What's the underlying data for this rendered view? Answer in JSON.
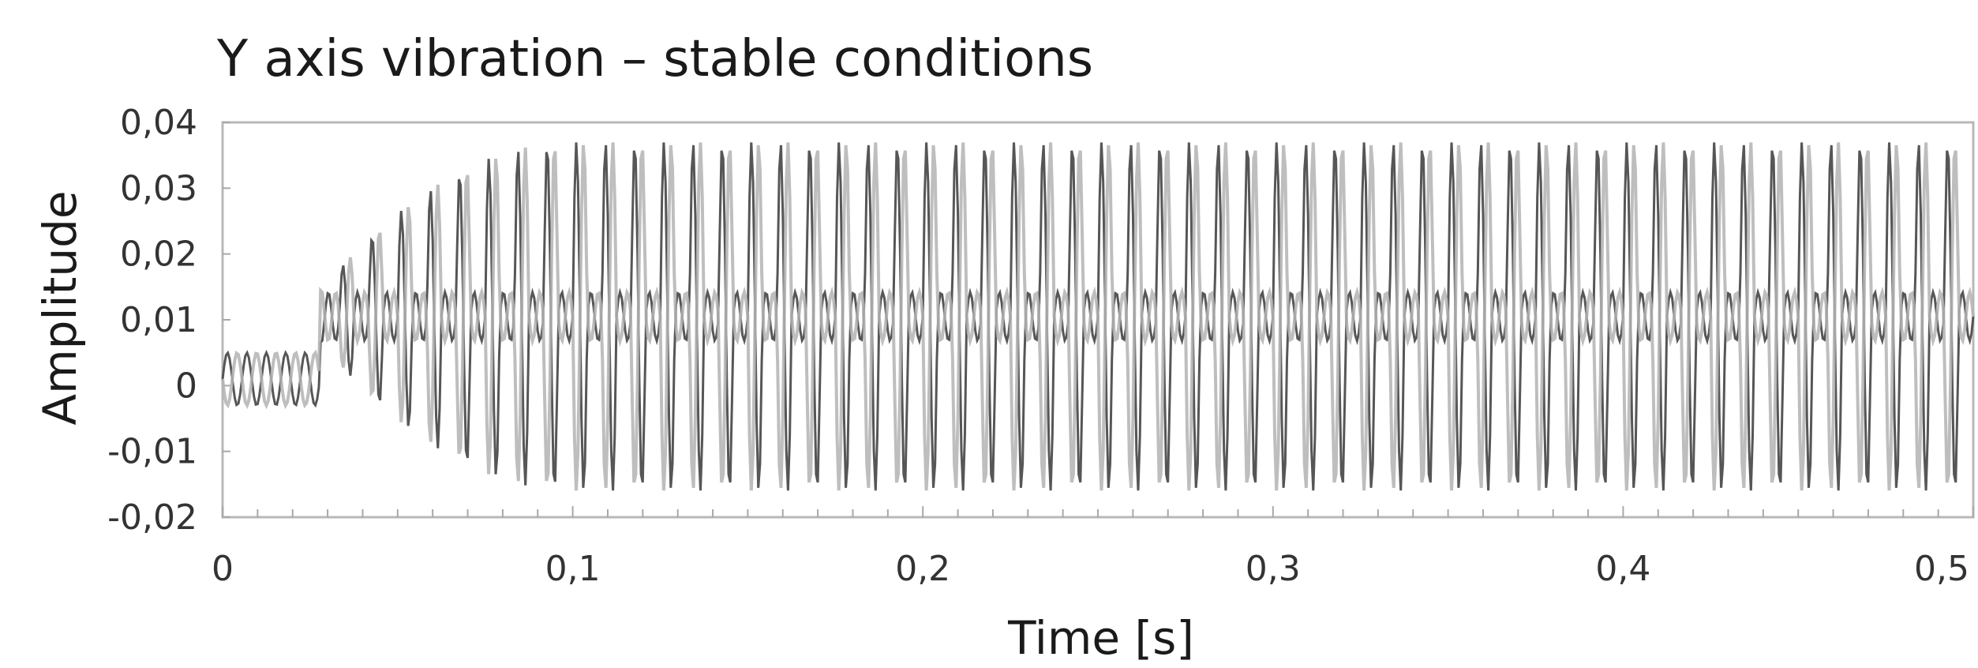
{
  "chart_data": {
    "type": "line",
    "title": "Y axis vibration – stable conditions",
    "xlabel": "Time [s]",
    "ylabel": "Amplitude",
    "xlim": [
      0,
      0.5
    ],
    "ylim": [
      -0.02,
      0.04
    ],
    "x_ticks": [
      "0",
      "0,1",
      "0,2",
      "0,3",
      "0,4",
      "0,5"
    ],
    "y_ticks": [
      "0,04",
      "0,03",
      "0,02",
      "0,01",
      "0",
      "-0,01",
      "-0,02"
    ],
    "grid": false,
    "legend": "none",
    "series": [
      {
        "color": "#4d4d4d",
        "description_values": {
          "sample_step": 0.0005,
          "steady_max": 0.035,
          "steady_min": -0.0095,
          "inner_max": 0.0145,
          "inner_min": 0.0072,
          "startup_end": 0.028,
          "settle_time": 0.1,
          "startup_amplitude_max": 0.006
        }
      },
      {
        "color": "#b3b3b3",
        "description_values": {
          "sample_step": 0.0005,
          "steady_max": 0.035,
          "steady_min": -0.0095,
          "inner_max": 0.0145,
          "inner_min": 0.0072,
          "startup_end": 0.028,
          "settle_time": 0.1,
          "startup_amplitude_max": 0.006
        }
      }
    ]
  }
}
